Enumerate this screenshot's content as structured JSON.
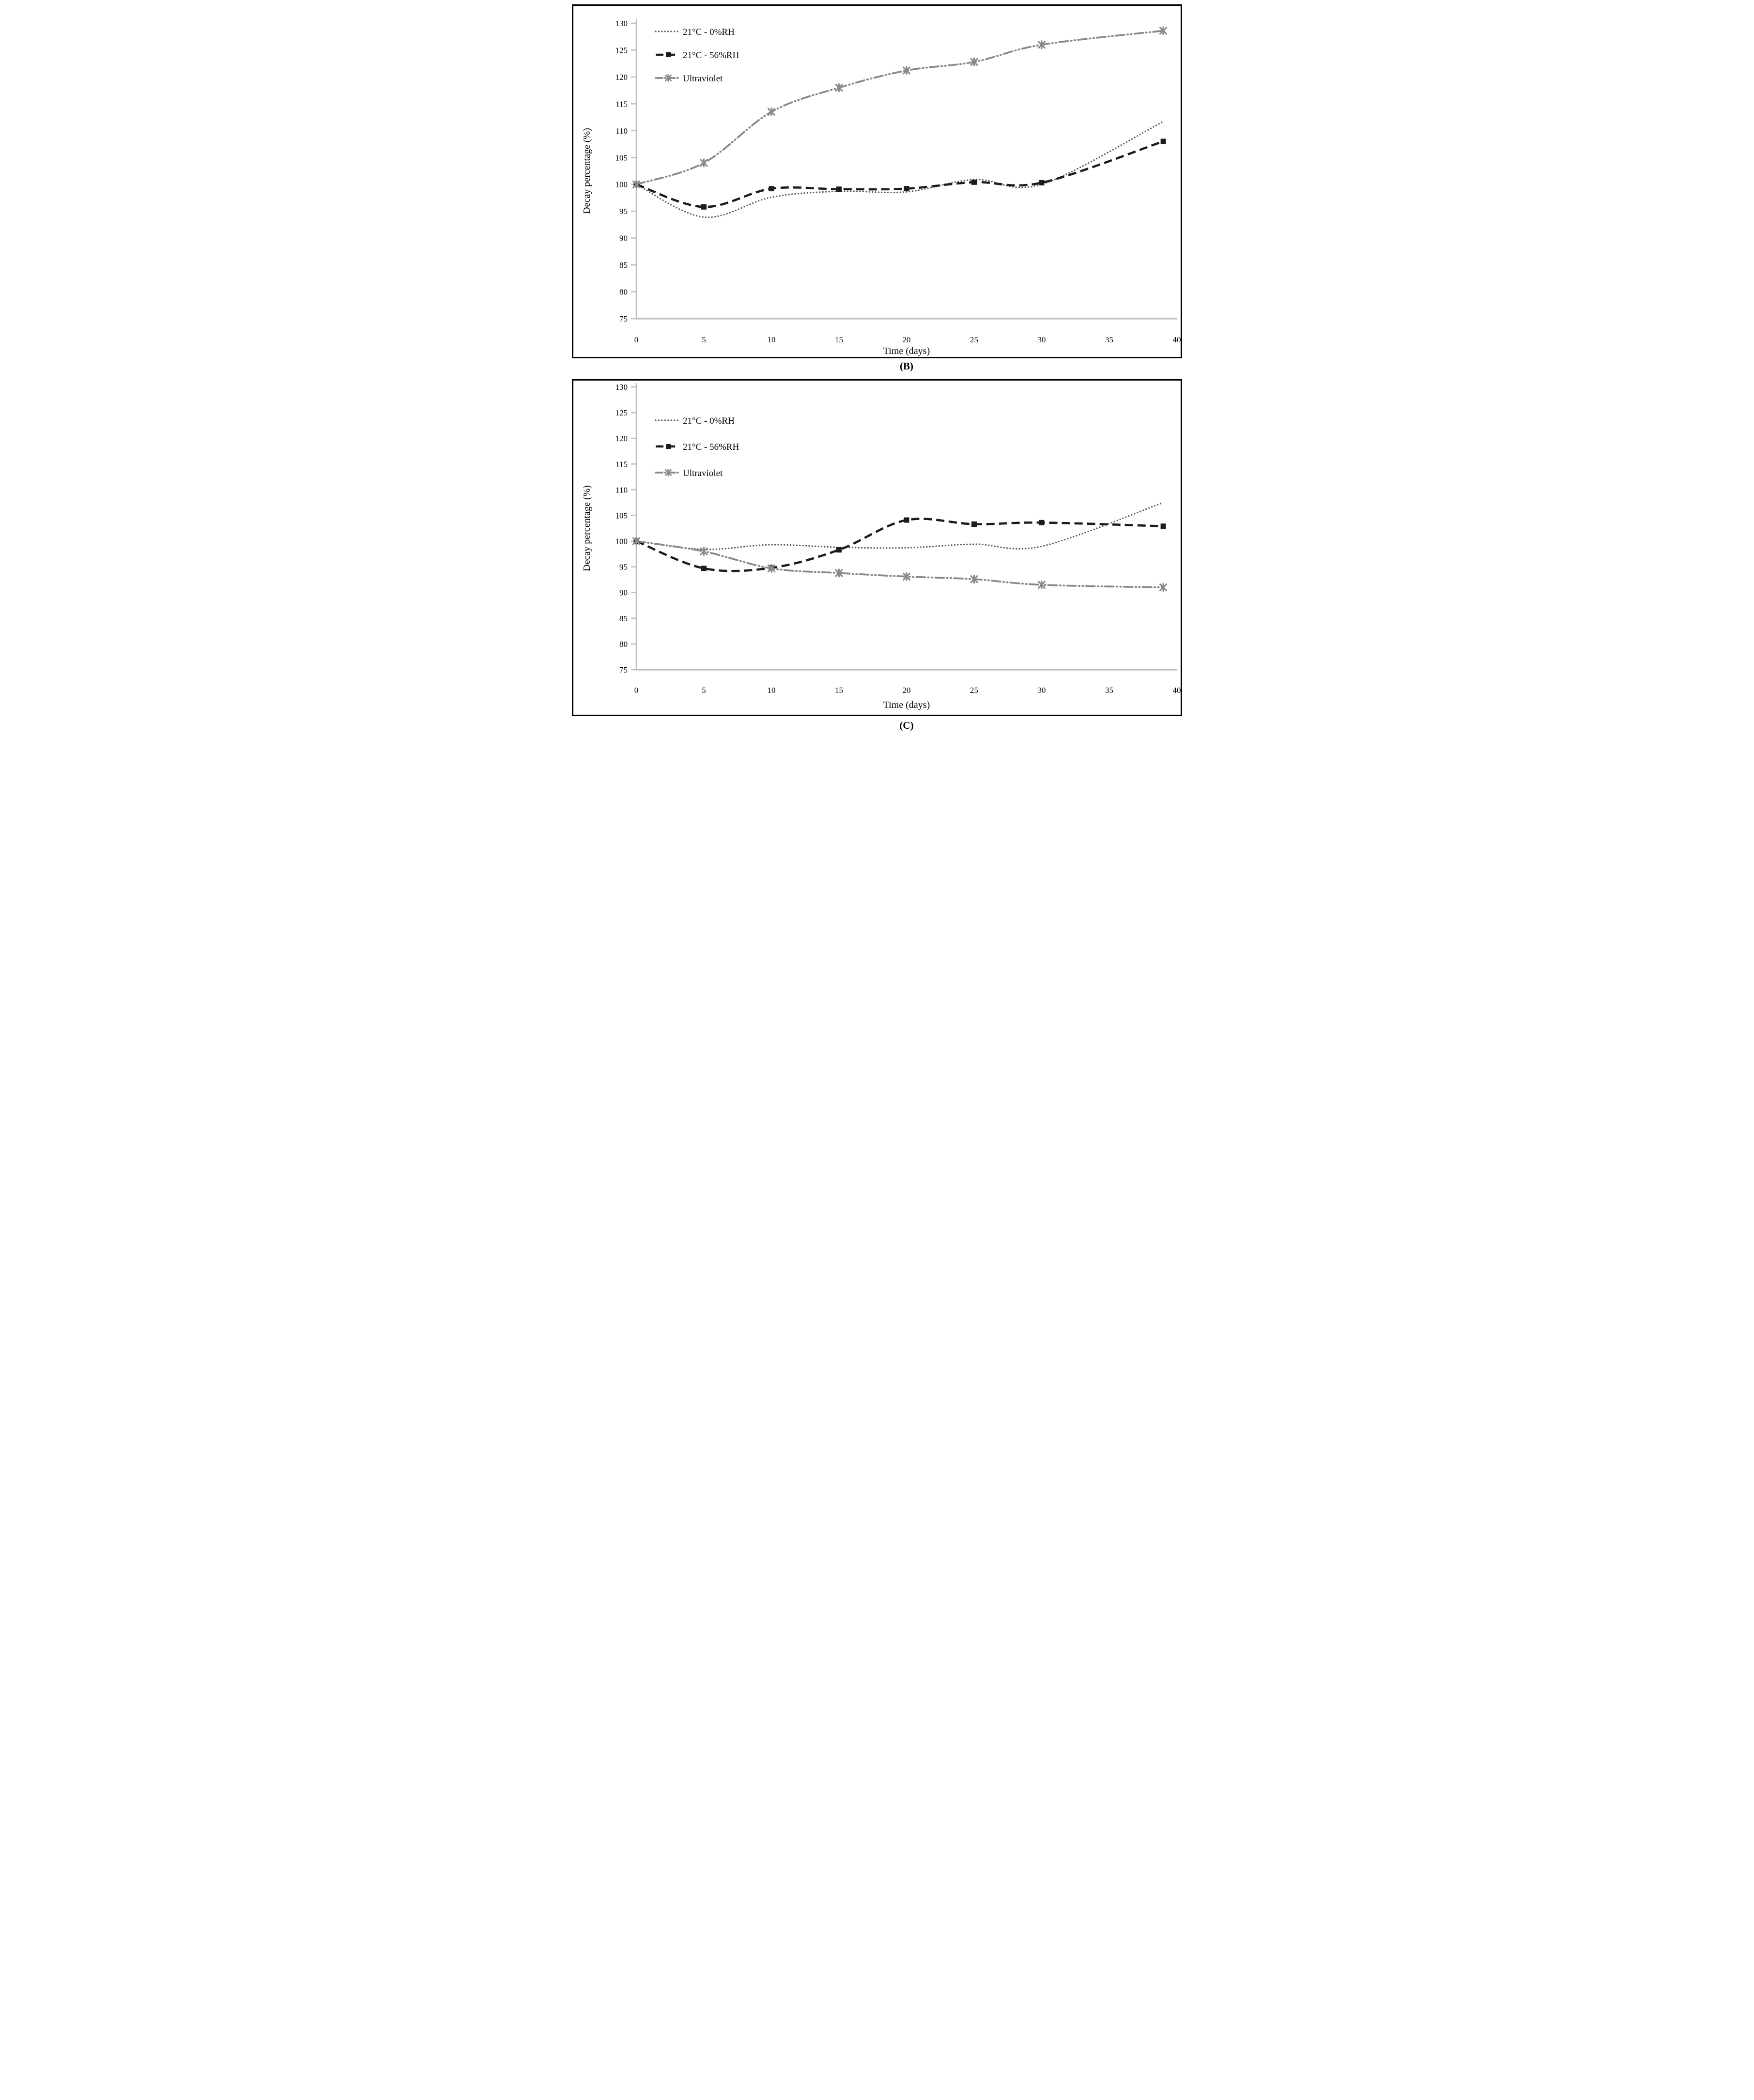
{
  "palette": {
    "dotted_series": "#595959",
    "dashed_series": "#1c1c1c",
    "uv_series": "#8a8a8a",
    "axis_line": "#bfbfbf",
    "text": "#000000"
  },
  "chart_data": [
    {
      "panel_label": "(B)",
      "type": "line",
      "xlabel": "Time (days)",
      "ylabel": "Decay percentage (%)",
      "xlim": [
        0,
        40
      ],
      "ylim": [
        75,
        130
      ],
      "x_ticks": [
        0,
        5,
        10,
        15,
        20,
        25,
        30,
        35,
        40
      ],
      "y_ticks": [
        75,
        80,
        85,
        90,
        95,
        100,
        105,
        110,
        115,
        120,
        125,
        130
      ],
      "grid": false,
      "legend_position": "top-left",
      "x": [
        0,
        5,
        10,
        15,
        20,
        25,
        30,
        39
      ],
      "series": [
        {
          "name": "21°C - 0%RH",
          "key": "21c-0rh",
          "line": "dotted",
          "marker": "none",
          "values": [
            100,
            93.9,
            97.6,
            98.7,
            98.6,
            100.9,
            100.0,
            111.7
          ]
        },
        {
          "name": "21°C - 56%RH",
          "key": "21c-56rh",
          "line": "dashed",
          "marker": "square-marker",
          "values": [
            100,
            95.8,
            99.2,
            99.1,
            99.2,
            100.4,
            100.3,
            108.0
          ]
        },
        {
          "name": "Ultraviolet",
          "key": "ultraviolet",
          "line": "dashdotdot",
          "marker": "x-star-marker",
          "values": [
            100,
            104.0,
            113.5,
            118.0,
            121.2,
            122.8,
            126.0,
            128.6
          ]
        }
      ]
    },
    {
      "panel_label": "(C)",
      "type": "line",
      "xlabel": "Time (days)",
      "ylabel": "Decay percentage (%)",
      "xlim": [
        0,
        40
      ],
      "ylim": [
        75,
        130
      ],
      "x_ticks": [
        0,
        5,
        10,
        15,
        20,
        25,
        30,
        35,
        40
      ],
      "y_ticks": [
        75,
        80,
        85,
        90,
        95,
        100,
        105,
        110,
        115,
        120,
        125,
        130
      ],
      "grid": false,
      "legend_position": "top-left",
      "x": [
        0,
        5,
        10,
        15,
        20,
        25,
        30,
        39
      ],
      "series": [
        {
          "name": "21°C - 0%RH",
          "key": "21c-0rh",
          "line": "dotted",
          "marker": "none",
          "values": [
            100,
            98.4,
            99.3,
            98.8,
            98.7,
            99.4,
            99.0,
            107.5
          ]
        },
        {
          "name": "21°C - 56%RH",
          "key": "21c-56rh",
          "line": "dashed",
          "marker": "square-marker",
          "values": [
            100,
            94.7,
            94.8,
            98.3,
            104.1,
            103.3,
            103.6,
            102.9
          ]
        },
        {
          "name": "Ultraviolet",
          "key": "ultraviolet",
          "line": "dashdotdot",
          "marker": "x-star-marker",
          "values": [
            100,
            98.0,
            94.7,
            93.8,
            93.1,
            92.6,
            91.5,
            91.0
          ]
        }
      ]
    }
  ]
}
